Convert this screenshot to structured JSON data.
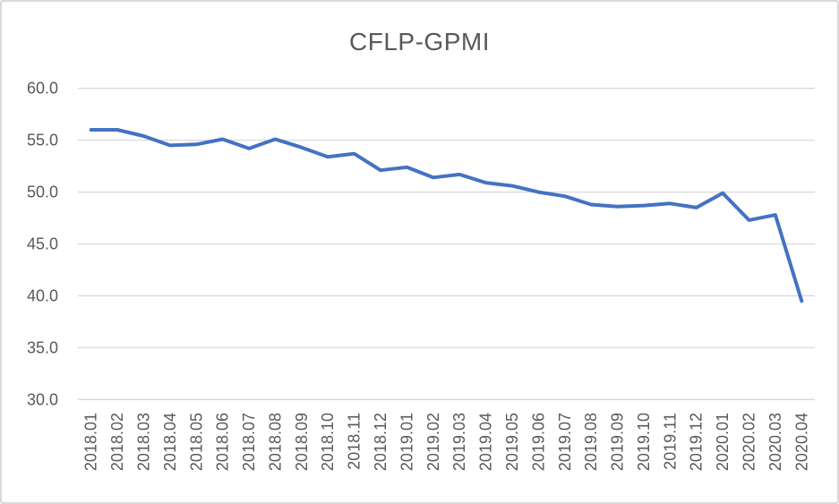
{
  "chart_data": {
    "type": "line",
    "title": "CFLP-GPMI",
    "categories": [
      "2018.01",
      "2018.02",
      "2018.03",
      "2018.04",
      "2018.05",
      "2018.06",
      "2018.07",
      "2018.08",
      "2018.09",
      "2018.10",
      "2018.11",
      "2018.12",
      "2019.01",
      "2019.02",
      "2019.03",
      "2019.04",
      "2019.05",
      "2019.06",
      "2019.07",
      "2019.08",
      "2019.09",
      "2019.10",
      "2019.11",
      "2019.12",
      "2020.01",
      "2020.02",
      "2020.03",
      "2020.04"
    ],
    "series": [
      {
        "name": "CFLP-GPMI",
        "values": [
          56.0,
          56.0,
          55.4,
          54.5,
          54.6,
          55.1,
          54.2,
          55.1,
          54.3,
          53.4,
          53.7,
          52.1,
          52.4,
          51.4,
          51.7,
          50.9,
          50.6,
          50.0,
          49.6,
          48.8,
          48.6,
          48.7,
          48.9,
          48.5,
          49.9,
          47.3,
          47.8,
          39.5
        ]
      }
    ],
    "xlabel": "",
    "ylabel": "",
    "ylim": [
      30,
      60
    ],
    "ytick_step": 5,
    "ytick_labels": [
      "30.0",
      "35.0",
      "40.0",
      "45.0",
      "50.0",
      "55.0",
      "60.0"
    ],
    "x_tick_rotation_degrees": 90,
    "grid": "horizontal",
    "legend_position": "none",
    "colors": {
      "line": "#4472C4",
      "gridline": "#D9D9D9",
      "axis_label": "#595959",
      "title": "#595959",
      "frame_border": "#D9D9D9",
      "background": "#FFFFFF"
    }
  }
}
